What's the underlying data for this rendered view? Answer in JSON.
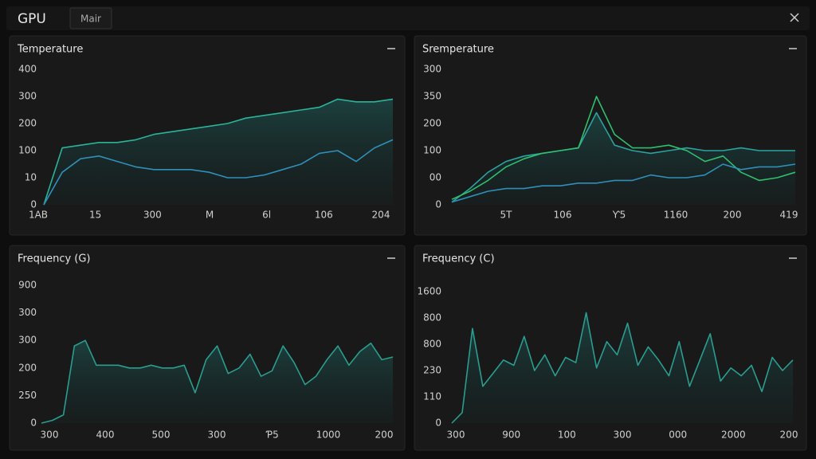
{
  "header": {
    "title": "GPU",
    "tab": "Mair"
  },
  "panels": [
    {
      "title": "Temperature",
      "yticks": [
        0,
        {
          "value": 1,
          "label": "10"
        },
        {
          "value": 2,
          "label": "100"
        },
        {
          "value": 3,
          "label": "200"
        },
        {
          "value": 4,
          "label": "300"
        },
        {
          "value": 5,
          "label": "400"
        }
      ],
      "xticks": [
        "1AB",
        "15",
        "300",
        "M",
        "6l",
        "106",
        "204"
      ],
      "series": [
        {
          "color": "#2bb39a",
          "values": [
            0,
            2.1,
            2.2,
            2.3,
            2.3,
            2.4,
            2.6,
            2.7,
            2.8,
            2.9,
            3.0,
            3.2,
            3.3,
            3.4,
            3.5,
            3.6,
            3.9,
            3.8,
            3.8,
            3.9
          ]
        },
        {
          "color": "#2f8fb8",
          "values": [
            0,
            1.2,
            1.7,
            1.8,
            1.6,
            1.4,
            1.3,
            1.3,
            1.3,
            1.2,
            1.0,
            1.0,
            1.1,
            1.3,
            1.5,
            1.9,
            2.0,
            1.6,
            2.1,
            2.4
          ]
        }
      ]
    },
    {
      "title": "Sremperature",
      "yticks": [
        0,
        {
          "value": 1,
          "label": "00"
        },
        {
          "value": 2,
          "label": "100"
        },
        {
          "value": 3,
          "label": "200"
        },
        {
          "value": 4,
          "label": "350"
        },
        {
          "value": 5,
          "label": "300"
        }
      ],
      "xticks": [
        "5T",
        "106",
        "Ƴ5",
        "1160",
        "200",
        "419"
      ],
      "series": [
        {
          "color": "#2aa3a0",
          "values": [
            0.1,
            0.6,
            1.2,
            1.6,
            1.8,
            1.9,
            2.0,
            2.1,
            3.4,
            2.2,
            2.0,
            1.9,
            2.0,
            2.1,
            2.0,
            2.0,
            2.1,
            2.0,
            2.0,
            2.0
          ]
        },
        {
          "color": "#2fbf6e",
          "values": [
            0.2,
            0.5,
            0.9,
            1.4,
            1.7,
            1.9,
            2.0,
            2.1,
            4.0,
            2.6,
            2.1,
            2.1,
            2.2,
            2.0,
            1.6,
            1.8,
            1.2,
            0.9,
            1.0,
            1.2
          ]
        },
        {
          "color": "#2f8fb8",
          "values": [
            0.1,
            0.3,
            0.5,
            0.6,
            0.6,
            0.7,
            0.7,
            0.8,
            0.8,
            0.9,
            0.9,
            1.1,
            1.0,
            1.0,
            1.1,
            1.5,
            1.3,
            1.4,
            1.4,
            1.5
          ]
        }
      ]
    },
    {
      "title": "Frequency (G)",
      "yticks": [
        0,
        {
          "value": 1,
          "label": "250"
        },
        {
          "value": 2,
          "label": "200"
        },
        {
          "value": 3,
          "label": "300"
        },
        {
          "value": 4,
          "label": "300"
        },
        {
          "value": 5,
          "label": "900"
        }
      ],
      "xticks": [
        "300",
        "400",
        "500",
        "300",
        "Ƥ5",
        "1000",
        "200"
      ],
      "series": [
        {
          "color": "#2a9d8f",
          "values": [
            0,
            0.1,
            0.3,
            2.8,
            3.0,
            2.1,
            2.1,
            2.1,
            2.0,
            2.0,
            2.1,
            2.0,
            2.0,
            2.1,
            1.1,
            2.3,
            2.8,
            1.8,
            2.0,
            2.5,
            1.7,
            1.9,
            2.8,
            2.2,
            1.4,
            1.7,
            2.3,
            2.8,
            2.1,
            2.6,
            2.9,
            2.3,
            2.4
          ]
        }
      ]
    },
    {
      "title": "Frequency (C)",
      "yticks": [
        0,
        {
          "value": 1,
          "label": "110"
        },
        {
          "value": 2,
          "label": "230"
        },
        {
          "value": 3,
          "label": "800"
        },
        {
          "value": 4,
          "label": "800"
        },
        {
          "value": 5,
          "label": "1600"
        }
      ],
      "xticks": [
        "300",
        "900",
        "100",
        "300",
        "000",
        "2000",
        "200"
      ],
      "series": [
        {
          "color": "#2a9d8f",
          "values": [
            0,
            0.4,
            3.6,
            1.4,
            1.9,
            2.4,
            2.2,
            3.3,
            2.0,
            2.6,
            1.8,
            2.5,
            2.3,
            4.2,
            2.1,
            3.1,
            2.6,
            3.8,
            2.2,
            2.9,
            2.4,
            1.8,
            3.1,
            1.4,
            2.4,
            3.4,
            1.6,
            2.1,
            1.8,
            2.2,
            1.2,
            2.5,
            2.0,
            2.4
          ]
        }
      ]
    }
  ]
}
